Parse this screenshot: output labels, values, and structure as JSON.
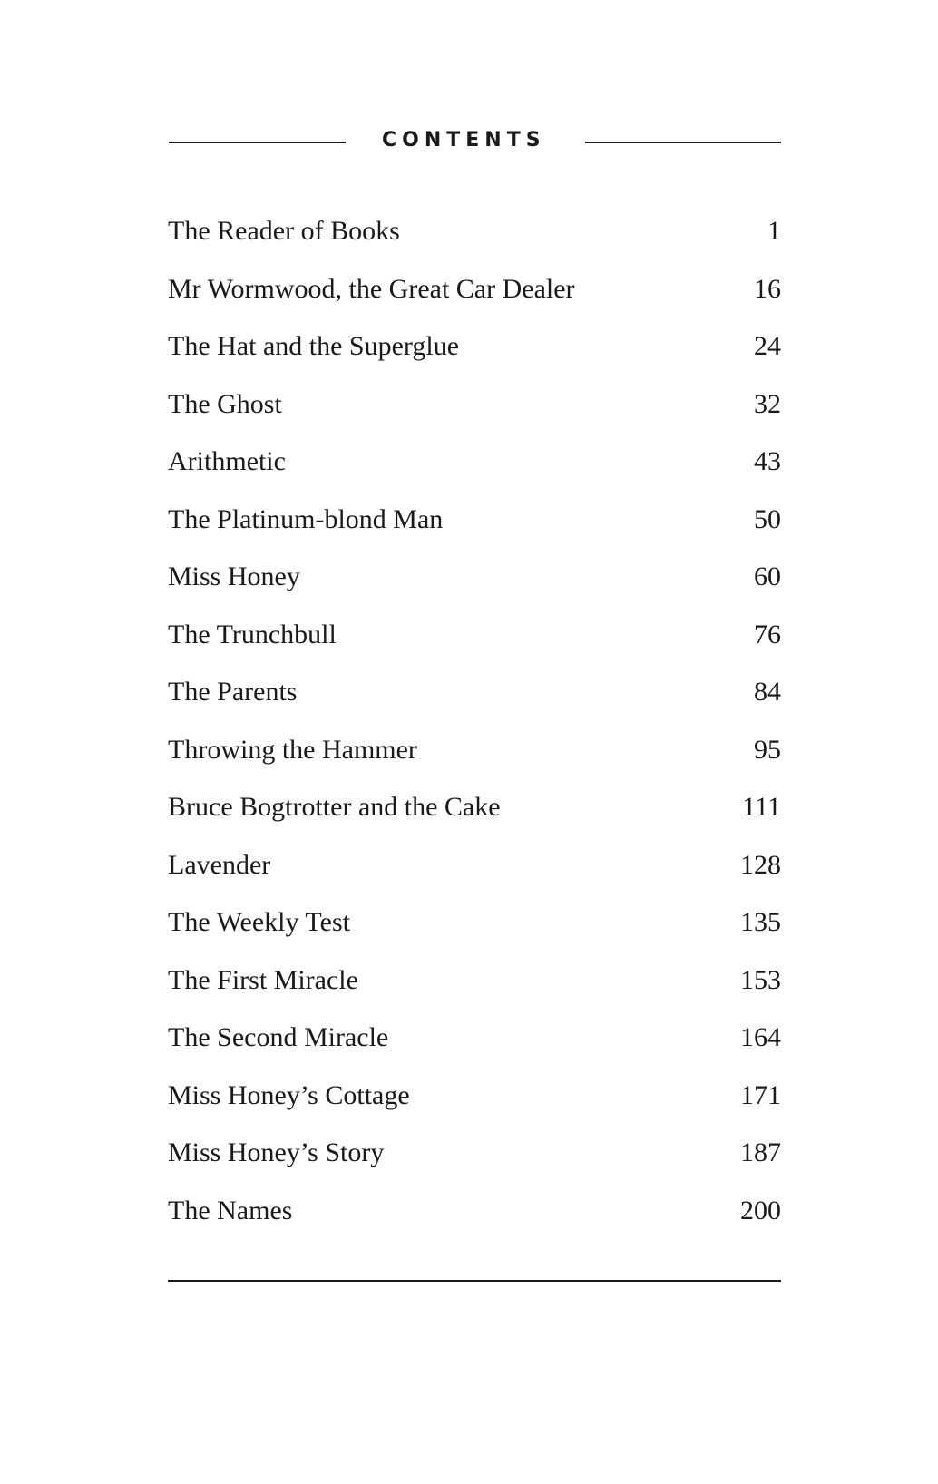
{
  "title": "CONTENTS",
  "chapters": [
    {
      "title": "The Reader of Books",
      "page": "1"
    },
    {
      "title": "Mr Wormwood, the Great Car Dealer",
      "page": "16"
    },
    {
      "title": "The Hat and the Superglue",
      "page": "24"
    },
    {
      "title": "The Ghost",
      "page": "32"
    },
    {
      "title": "Arithmetic",
      "page": "43"
    },
    {
      "title": "The Platinum-blond Man",
      "page": "50"
    },
    {
      "title": "Miss Honey",
      "page": "60"
    },
    {
      "title": "The Trunchbull",
      "page": "76"
    },
    {
      "title": "The Parents",
      "page": "84"
    },
    {
      "title": "Throwing the Hammer",
      "page": "95"
    },
    {
      "title": "Bruce Bogtrotter and the Cake",
      "page": "111"
    },
    {
      "title": "Lavender",
      "page": "128"
    },
    {
      "title": "The Weekly Test",
      "page": "135"
    },
    {
      "title": "The First Miracle",
      "page": "153"
    },
    {
      "title": "The Second Miracle",
      "page": "164"
    },
    {
      "title": "Miss Honey’s Cottage",
      "page": "171"
    },
    {
      "title": "Miss Honey’s Story",
      "page": "187"
    },
    {
      "title": "The Names",
      "page": "200"
    }
  ]
}
